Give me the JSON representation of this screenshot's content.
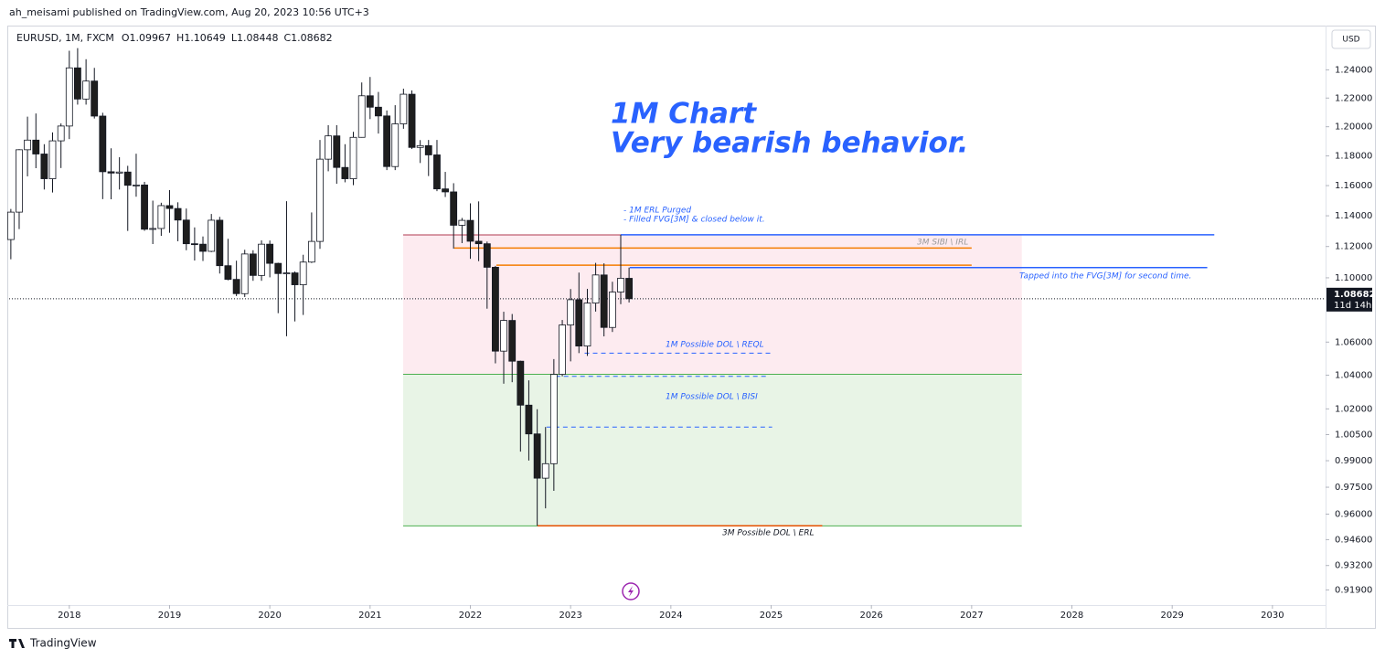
{
  "header": {
    "publisher": "ah_meisami published on TradingView.com, Aug 20, 2023 10:56 UTC+3",
    "footer": "TradingView"
  },
  "chart_data": {
    "type": "candlestick",
    "symbol": "EURUSD, 1M, FXCM",
    "ohlc_labels": [
      "O",
      "H",
      "L",
      "C"
    ],
    "currency": "USD",
    "countdown": "11d 14h",
    "up_color": "#ffffff",
    "down_color": "#1e1e1e",
    "x": [
      2017.417,
      2017.5,
      2017.583,
      2017.667,
      2017.75,
      2017.833,
      2017.917,
      2018.0,
      2018.083,
      2018.167,
      2018.25,
      2018.333,
      2018.417,
      2018.5,
      2018.583,
      2018.667,
      2018.75,
      2018.833,
      2018.917,
      2019.0,
      2019.083,
      2019.167,
      2019.25,
      2019.333,
      2019.417,
      2019.5,
      2019.583,
      2019.667,
      2019.75,
      2019.833,
      2019.917,
      2020.0,
      2020.083,
      2020.167,
      2020.25,
      2020.333,
      2020.417,
      2020.5,
      2020.583,
      2020.667,
      2020.75,
      2020.833,
      2020.917,
      2021.0,
      2021.083,
      2021.167,
      2021.25,
      2021.333,
      2021.417,
      2021.5,
      2021.583,
      2021.667,
      2021.75,
      2021.833,
      2021.917,
      2022.0,
      2022.083,
      2022.167,
      2022.25,
      2022.333,
      2022.417,
      2022.5,
      2022.583,
      2022.667,
      2022.75,
      2022.833,
      2022.917,
      2023.0,
      2023.083,
      2023.167,
      2023.25,
      2023.333,
      2023.417,
      2023.5,
      2023.583
    ],
    "open": [
      1.1245,
      1.1424,
      1.1842,
      1.1908,
      1.1813,
      1.1646,
      1.1903,
      1.2005,
      1.2414,
      1.2193,
      1.232,
      1.2074,
      1.1693,
      1.1684,
      1.1691,
      1.1602,
      1.1604,
      1.1312,
      1.1317,
      1.1467,
      1.1448,
      1.1372,
      1.1218,
      1.1215,
      1.1169,
      1.1371,
      1.1077,
      1.099,
      1.09,
      1.1152,
      1.1015,
      1.1215,
      1.1092,
      1.1027,
      1.1031,
      1.0956,
      1.11,
      1.1233,
      1.1778,
      1.1937,
      1.1722,
      1.1646,
      1.1927,
      1.2216,
      1.2136,
      1.2075,
      1.1728,
      1.202,
      1.2227,
      1.1858,
      1.187,
      1.1807,
      1.1578,
      1.1558,
      1.1338,
      1.137,
      1.1234,
      1.1218,
      1.1067,
      1.0545,
      1.0733,
      1.0484,
      1.0222,
      1.0054,
      0.9801,
      0.9883,
      1.0405,
      1.0705,
      1.0862,
      1.0576,
      1.0841,
      1.1018,
      1.069,
      1.091,
      1.09967
    ],
    "high": [
      1.1445,
      1.1846,
      1.207,
      1.2092,
      1.188,
      1.1961,
      1.2023,
      1.2537,
      1.2556,
      1.2476,
      1.2414,
      1.2097,
      1.1852,
      1.1791,
      1.1733,
      1.1815,
      1.1625,
      1.15,
      1.1486,
      1.157,
      1.1489,
      1.1448,
      1.1324,
      1.1265,
      1.1412,
      1.1393,
      1.125,
      1.1109,
      1.1179,
      1.1176,
      1.124,
      1.1239,
      1.1096,
      1.1496,
      1.104,
      1.1147,
      1.1422,
      1.1909,
      1.2011,
      1.2011,
      1.188,
      1.1965,
      1.231,
      1.2349,
      1.2243,
      1.2113,
      1.215,
      1.2266,
      1.2254,
      1.1908,
      1.1909,
      1.1909,
      1.1692,
      1.1616,
      1.1386,
      1.1482,
      1.1495,
      1.1232,
      1.1076,
      1.0787,
      1.0773,
      1.0487,
      1.0369,
      1.0198,
      1.0094,
      1.0497,
      1.0736,
      1.0929,
      1.1033,
      1.093,
      1.1095,
      1.1092,
      1.0975,
      1.1276,
      1.10649
    ],
    "low": [
      1.1118,
      1.1313,
      1.1662,
      1.1717,
      1.1574,
      1.1554,
      1.1718,
      1.1915,
      1.2154,
      1.2154,
      1.2057,
      1.151,
      1.1509,
      1.1574,
      1.1301,
      1.1526,
      1.1302,
      1.1216,
      1.1269,
      1.1289,
      1.1234,
      1.1176,
      1.111,
      1.1107,
      1.1164,
      1.1027,
      1.0984,
      1.0885,
      1.0879,
      1.0981,
      1.0981,
      1.1003,
      1.0778,
      1.0636,
      1.0727,
      1.0767,
      1.1094,
      1.1185,
      1.1696,
      1.1612,
      1.1622,
      1.1603,
      1.1925,
      1.2053,
      1.1953,
      1.1704,
      1.1704,
      1.1986,
      1.1847,
      1.1752,
      1.1664,
      1.1563,
      1.1524,
      1.1186,
      1.1222,
      1.1121,
      1.1106,
      1.0806,
      1.0471,
      1.0349,
      1.0358,
      0.9952,
      0.9901,
      0.9536,
      0.9632,
      0.973,
      1.0393,
      1.0483,
      1.0533,
      1.0516,
      1.0788,
      1.0635,
      1.0662,
      1.0834,
      1.08448
    ],
    "close": [
      1.1424,
      1.1842,
      1.1908,
      1.1813,
      1.1646,
      1.1903,
      1.2005,
      1.2414,
      1.2193,
      1.232,
      1.2074,
      1.1693,
      1.1684,
      1.1691,
      1.1602,
      1.1604,
      1.1312,
      1.1317,
      1.1467,
      1.1448,
      1.1372,
      1.1218,
      1.1215,
      1.1169,
      1.1371,
      1.1077,
      1.099,
      1.09,
      1.1152,
      1.1015,
      1.1215,
      1.1092,
      1.1027,
      1.1031,
      1.0956,
      1.11,
      1.1233,
      1.1778,
      1.1937,
      1.1722,
      1.1646,
      1.1927,
      1.2216,
      1.2136,
      1.2075,
      1.1728,
      1.202,
      1.2227,
      1.1858,
      1.187,
      1.1807,
      1.1578,
      1.1558,
      1.1338,
      1.137,
      1.1234,
      1.1218,
      1.1067,
      1.0545,
      1.0733,
      1.0484,
      1.0222,
      1.0054,
      0.9801,
      0.9883,
      1.0405,
      1.0705,
      1.0862,
      1.0576,
      1.0841,
      1.1018,
      1.069,
      1.091,
      1.0997,
      1.08682
    ],
    "xlim": [
      2017.4,
      2030.53
    ],
    "xticks": [
      2018,
      2019,
      2020,
      2021,
      2022,
      2023,
      2024,
      2025,
      2026,
      2027,
      2028,
      2029,
      2030
    ],
    "ylim": [
      0.911,
      1.272
    ],
    "log_y": true,
    "yticks": [
      {
        "value": 1.24,
        "label": "1.24000"
      },
      {
        "value": 1.22,
        "label": "1.22000"
      },
      {
        "value": 1.2,
        "label": "1.20000"
      },
      {
        "value": 1.18,
        "label": "1.18000"
      },
      {
        "value": 1.16,
        "label": "1.16000"
      },
      {
        "value": 1.14,
        "label": "1.14000"
      },
      {
        "value": 1.12,
        "label": "1.12000"
      },
      {
        "value": 1.1,
        "label": "1.10000"
      },
      {
        "value": 1.06,
        "label": "1.06000"
      },
      {
        "value": 1.04,
        "label": "1.04000"
      },
      {
        "value": 1.02,
        "label": "1.02000"
      },
      {
        "value": 1.005,
        "label": "1.00500"
      },
      {
        "value": 0.99,
        "label": "0.99000"
      },
      {
        "value": 0.975,
        "label": "0.97500"
      },
      {
        "value": 0.96,
        "label": "0.96000"
      },
      {
        "value": 0.946,
        "label": "0.94600"
      },
      {
        "value": 0.932,
        "label": "0.93200"
      },
      {
        "value": 0.919,
        "label": "0.91900"
      }
    ],
    "zones": [
      {
        "x": [
          2021.33,
          2027.5
        ],
        "y": [
          1.0405,
          1.1275
        ],
        "color": "#fdebf0",
        "edge": "#b03a50"
      },
      {
        "x": [
          2021.33,
          2027.5
        ],
        "y": [
          0.9535,
          1.0405
        ],
        "color": "#e8f4e6",
        "edge": "#4caf50"
      }
    ],
    "levels": [
      {
        "y": 1.1276,
        "x": [
          2023.5,
          2029.42
        ],
        "color": "#2962ff",
        "style": "solid"
      },
      {
        "y": 1.119,
        "x": [
          2021.84,
          2027.0
        ],
        "color": "#f57c00",
        "style": "solid"
      },
      {
        "y": 1.108,
        "x": [
          2022.26,
          2027.0
        ],
        "color": "#f57c00",
        "style": "solid"
      },
      {
        "y": 1.1065,
        "x": [
          2023.59,
          2029.35
        ],
        "color": "#2962ff",
        "style": "solid"
      },
      {
        "y": 1.0533,
        "x": [
          2023.14,
          2025.01
        ],
        "color": "#2962ff",
        "style": "dashed"
      },
      {
        "y": 1.0393,
        "x": [
          2022.85,
          2024.96
        ],
        "color": "#2962ff",
        "style": "dashed"
      },
      {
        "y": 1.0094,
        "x": [
          2022.76,
          2025.01
        ],
        "color": "#2962ff",
        "style": "dashed"
      },
      {
        "y": 0.9536,
        "x": [
          2022.67,
          2025.51
        ],
        "color": "#e65100",
        "style": "solid"
      }
    ],
    "annotations": [
      "1M Chart",
      "Very bearish behavior.",
      "- 1M ERL Purged",
      "- Filled FVG[3M] & closed below it.",
      "3M SIBI \\ IRL",
      "Tapped into the FVG[3M] for second time.",
      "1M Possible DOL \\ REQL",
      "1M Possible DOL \\ BISI",
      "3M Possible DOL \\ ERL"
    ]
  }
}
